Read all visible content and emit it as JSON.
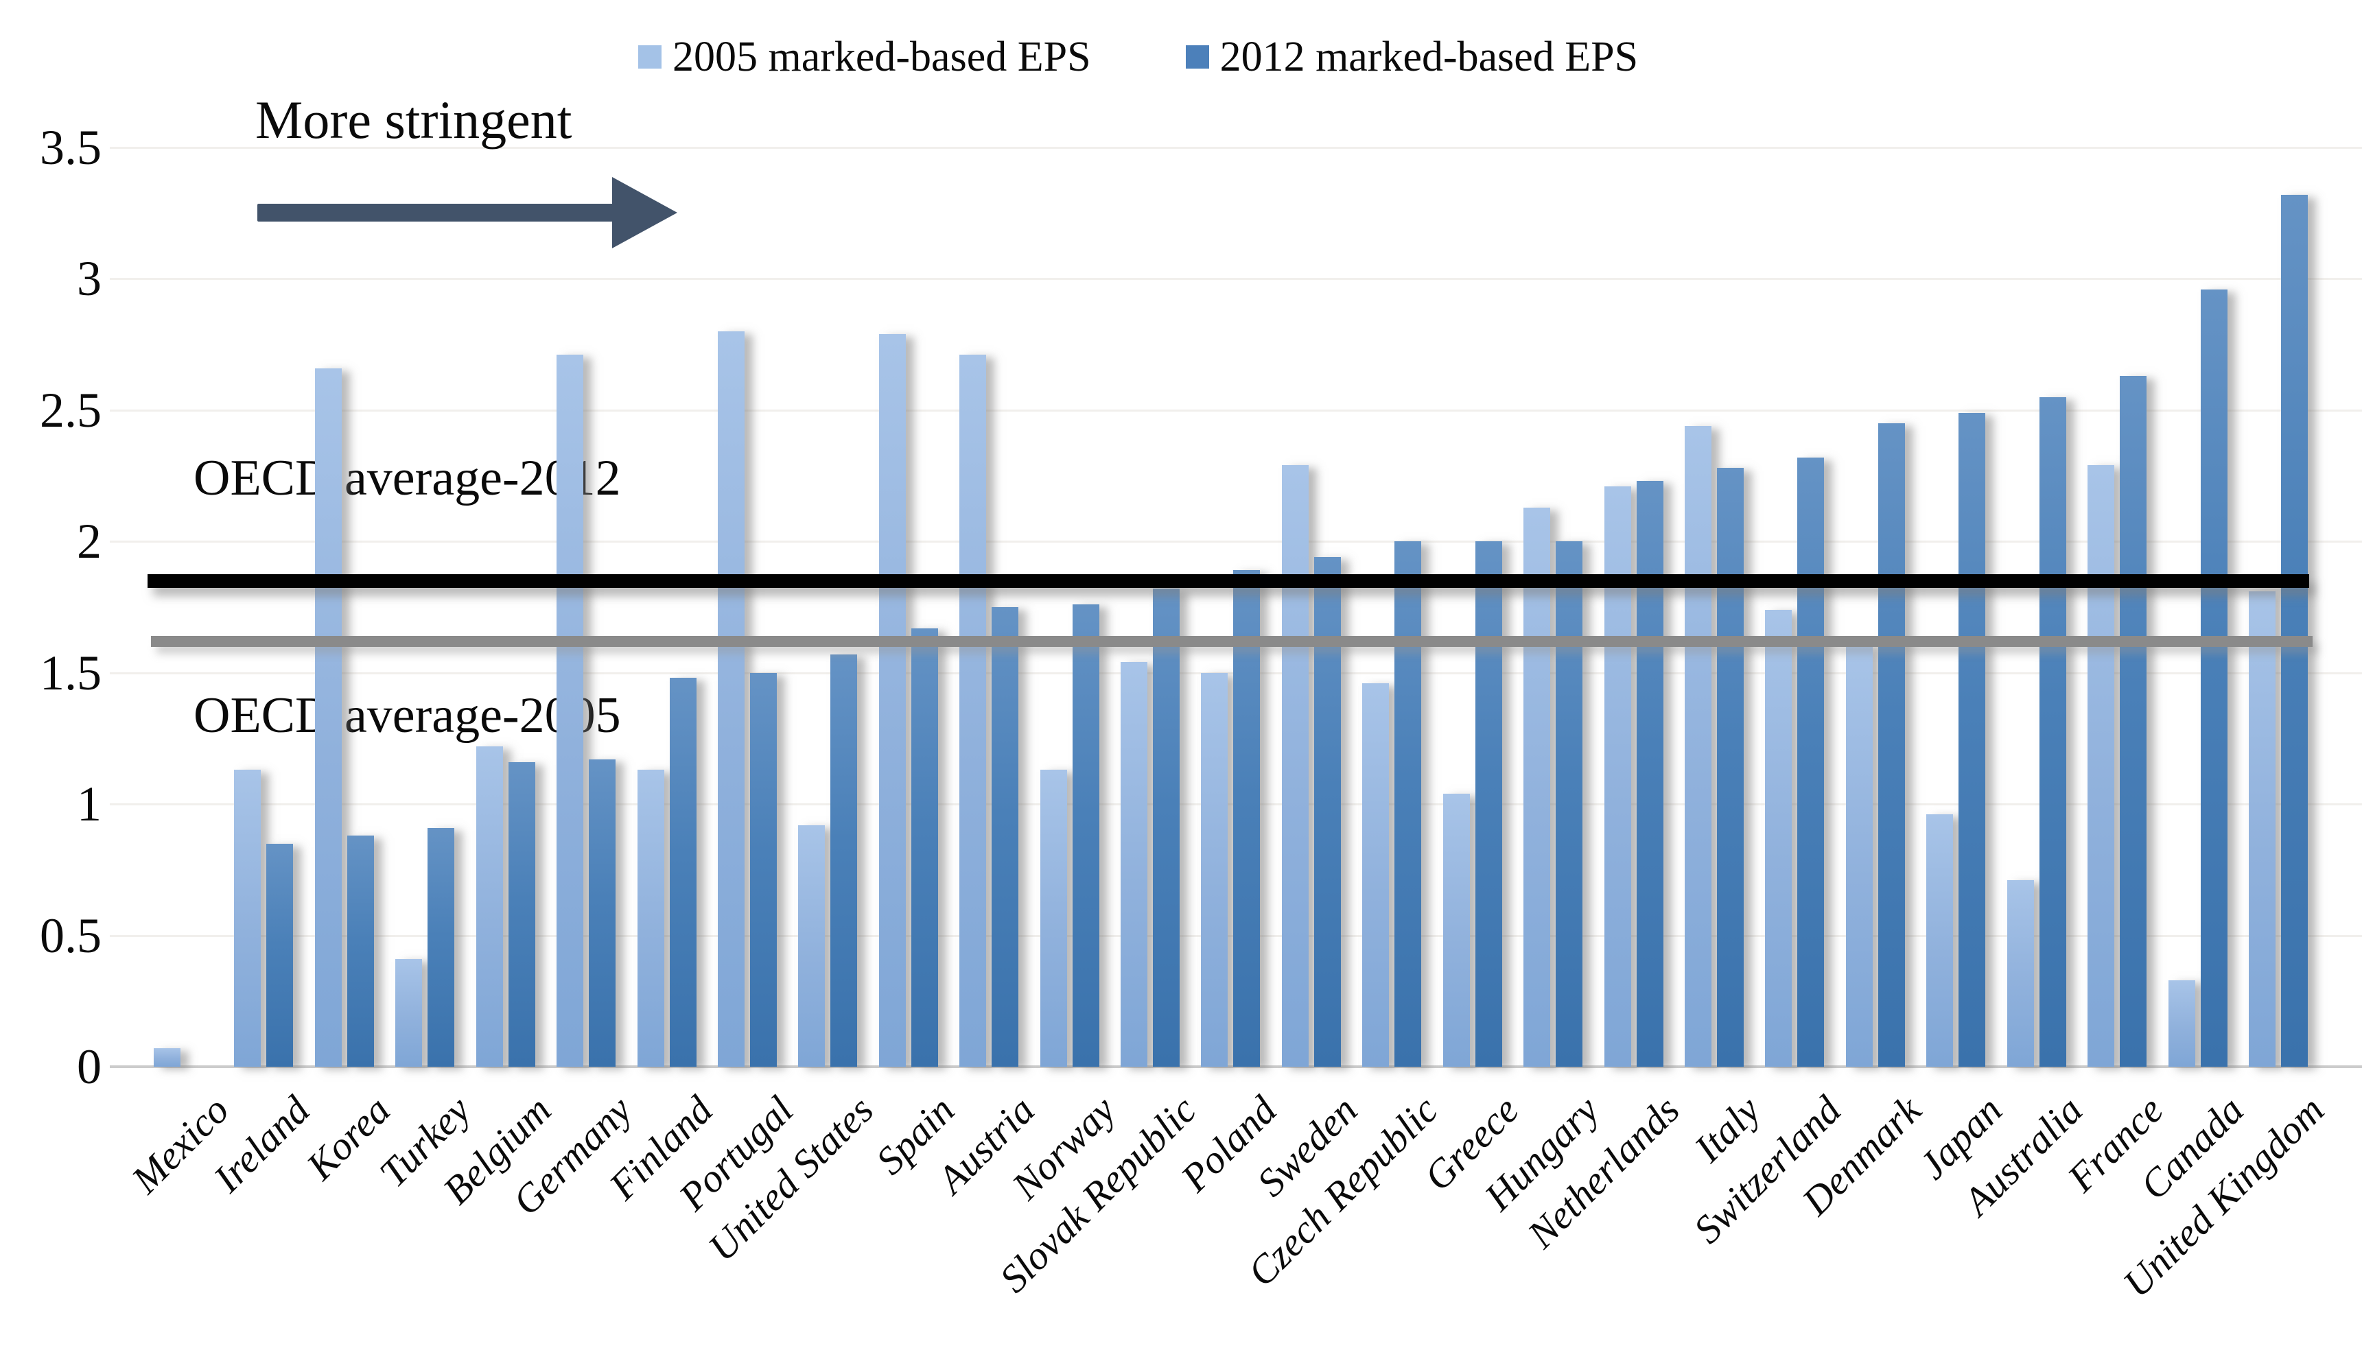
{
  "legend": {
    "items": [
      {
        "label": "2005 marked-based EPS",
        "color": "#a4c2e7"
      },
      {
        "label": "2012 marked-based EPS",
        "color": "#4c80ba"
      }
    ]
  },
  "annotations": {
    "more_stringent": "More stringent",
    "oecd_avg_2012_label": "OECD average-2012",
    "oecd_avg_2005_label": "OECD average-2005"
  },
  "arrow_color": "#42536a",
  "chart_data": {
    "type": "bar",
    "title": "",
    "xlabel": "",
    "ylabel": "",
    "ylim": [
      0,
      3.5
    ],
    "y_ticks": [
      3.5,
      3,
      2.5,
      2,
      1.5,
      1,
      0.5,
      0
    ],
    "grid": "faint horizontal gridlines at each 0.5 step",
    "legend_position": "top",
    "categories": [
      "Mexico",
      "Ireland",
      "Korea",
      "Turkey",
      "Belgium",
      "Germany",
      "Finland",
      "Portugal",
      "United States",
      "Spain",
      "Austria",
      "Norway",
      "Slovak Republic",
      "Poland",
      "Sweden",
      "Czech Republic",
      "Greece",
      "Hungary",
      "Netherlands",
      "Italy",
      "Switzerland",
      "Denmark",
      "Japan",
      "Australia",
      "France",
      "Canada",
      "United Kingdom"
    ],
    "series": [
      {
        "name": "2005 marked-based EPS",
        "color": "#8fb0dc",
        "values": [
          0.07,
          1.13,
          2.66,
          0.41,
          1.22,
          2.71,
          1.13,
          2.8,
          0.92,
          2.79,
          2.71,
          1.13,
          1.54,
          1.5,
          2.29,
          1.46,
          1.04,
          2.13,
          2.21,
          2.44,
          1.74,
          1.6,
          0.96,
          0.71,
          2.29,
          0.33,
          1.81
        ]
      },
      {
        "name": "2012 marked-based EPS",
        "color": "#4a80b8",
        "values": [
          null,
          0.85,
          0.88,
          0.91,
          1.16,
          1.17,
          1.48,
          1.5,
          1.57,
          1.67,
          1.75,
          1.76,
          1.82,
          1.89,
          1.94,
          2.0,
          2.0,
          2.0,
          2.23,
          2.28,
          2.32,
          2.45,
          2.49,
          2.55,
          2.63,
          2.96,
          3.32
        ]
      }
    ],
    "reference_lines": [
      {
        "name": "OECD average-2012",
        "value": 1.85,
        "color": "#010101"
      },
      {
        "name": "OECD average-2005",
        "value": 1.62,
        "color": "#8a8a8a"
      }
    ]
  }
}
